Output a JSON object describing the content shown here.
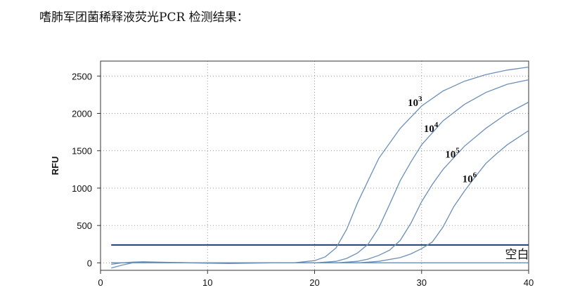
{
  "heading": "嗜肺军团菌稀释液荧光PCR 检测结果：",
  "chart_data": {
    "type": "line",
    "ylabel": "RFU",
    "xlabel": "",
    "xlim": [
      0,
      40
    ],
    "ylim": [
      -100,
      2700
    ],
    "xticks": [
      0,
      10,
      20,
      30,
      40
    ],
    "yticks": [
      0,
      500,
      1000,
      1500,
      2000,
      2500
    ],
    "grid": true,
    "threshold": {
      "name": "空白",
      "value": 240
    },
    "series": [
      {
        "name": "10",
        "exponent": "3",
        "x": [
          1,
          18,
          20,
          21,
          22,
          23,
          24,
          25,
          26,
          28,
          30,
          32,
          34,
          36,
          38,
          40
        ],
        "y": [
          0,
          0,
          30,
          80,
          200,
          450,
          800,
          1100,
          1400,
          1800,
          2100,
          2300,
          2430,
          2520,
          2580,
          2620
        ]
      },
      {
        "name": "10",
        "exponent": "4",
        "x": [
          1,
          20,
          22,
          23,
          24,
          25,
          26,
          27,
          28,
          29,
          30,
          32,
          34,
          36,
          38,
          40
        ],
        "y": [
          0,
          0,
          20,
          60,
          130,
          250,
          470,
          780,
          1100,
          1350,
          1580,
          1900,
          2120,
          2280,
          2390,
          2450
        ]
      },
      {
        "name": "10",
        "exponent": "5",
        "x": [
          1,
          22,
          24,
          25,
          26,
          27,
          28,
          29,
          30,
          31,
          32,
          34,
          36,
          38,
          40
        ],
        "y": [
          0,
          0,
          20,
          50,
          100,
          170,
          300,
          530,
          820,
          1050,
          1250,
          1560,
          1800,
          2000,
          2150
        ]
      },
      {
        "name": "10",
        "exponent": "6",
        "x": [
          1,
          24,
          26,
          28,
          29,
          30,
          31,
          32,
          33,
          34,
          35,
          36,
          37,
          38,
          40
        ],
        "y": [
          0,
          0,
          20,
          70,
          120,
          190,
          280,
          480,
          750,
          960,
          1150,
          1330,
          1460,
          1580,
          1770
        ]
      }
    ],
    "baseline_series": [
      {
        "x": [
          1,
          2,
          3,
          4,
          6,
          8,
          10,
          12,
          14,
          16,
          18,
          20,
          22,
          24,
          26,
          28,
          30,
          32,
          34,
          36,
          38,
          40
        ],
        "y": [
          -70,
          -30,
          0,
          10,
          5,
          0,
          -5,
          -10,
          -5,
          0,
          0,
          0,
          0,
          0,
          0,
          0,
          0,
          0,
          0,
          0,
          0,
          0
        ]
      },
      {
        "x": [
          1,
          2,
          3,
          4,
          6,
          8,
          10,
          12,
          14,
          16,
          18,
          20,
          22,
          24,
          26,
          28,
          30,
          32,
          34,
          36,
          38,
          40
        ],
        "y": [
          -20,
          0,
          10,
          15,
          8,
          3,
          -3,
          -5,
          0,
          2,
          0,
          0,
          0,
          0,
          0,
          0,
          0,
          0,
          0,
          0,
          0,
          0
        ]
      }
    ],
    "colors": {
      "curve": "#6b8fb8",
      "threshold": "#1f3f73",
      "grid": "#999999",
      "axis": "#333333"
    }
  }
}
